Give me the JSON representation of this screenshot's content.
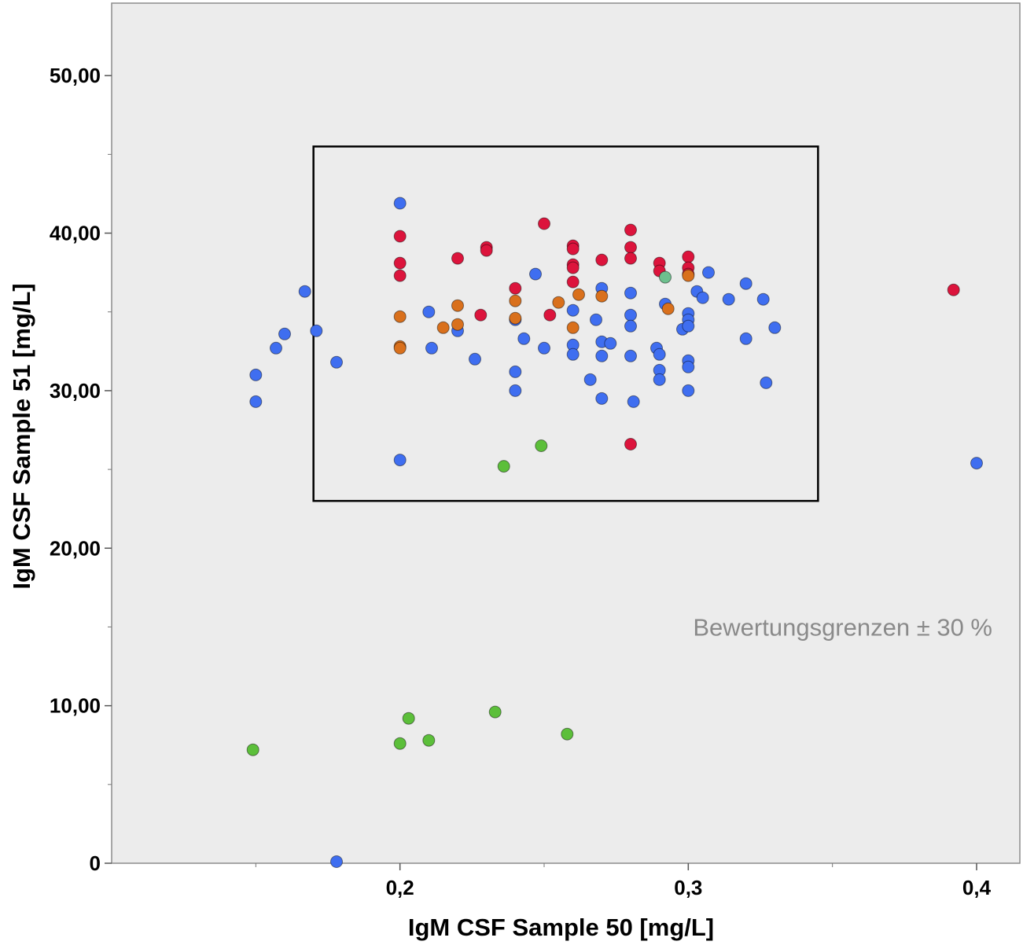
{
  "chart_data": {
    "type": "scatter",
    "xlabel": "IgM CSF Sample 50 [mg/L]",
    "ylabel": "IgM CSF Sample 51 [mg/L]",
    "xlim": [
      0.1,
      0.415
    ],
    "ylim": [
      0,
      54.6
    ],
    "x_ticks": [
      0.2,
      0.3,
      0.4
    ],
    "x_tick_labels": [
      "0,2",
      "0,3",
      "0,4"
    ],
    "x_minor_ticks": [
      0.15,
      0.25,
      0.35
    ],
    "y_ticks": [
      0,
      10,
      20,
      30,
      40,
      50
    ],
    "y_tick_labels": [
      "0",
      "10,00",
      "20,00",
      "30,00",
      "40,00",
      "50,00"
    ],
    "y_minor_ticks": [
      5,
      15,
      25,
      35,
      45
    ],
    "grid": false,
    "background": "#ececec",
    "acceptance_box": {
      "x": [
        0.17,
        0.345
      ],
      "y": [
        23.0,
        45.5
      ]
    },
    "annotation": "Bewertungsgrenzen ± 30 %",
    "series": [
      {
        "color": "#3f6ef0",
        "points": [
          [
            0.15,
            31.0
          ],
          [
            0.15,
            29.3
          ],
          [
            0.157,
            32.7
          ],
          [
            0.16,
            33.6
          ],
          [
            0.167,
            36.3
          ],
          [
            0.171,
            33.8
          ],
          [
            0.178,
            31.8
          ],
          [
            0.178,
            0.1
          ],
          [
            0.2,
            41.9
          ],
          [
            0.2,
            25.6
          ],
          [
            0.21,
            35.0
          ],
          [
            0.211,
            32.7
          ],
          [
            0.22,
            33.8
          ],
          [
            0.226,
            32.0
          ],
          [
            0.24,
            34.5
          ],
          [
            0.24,
            31.2
          ],
          [
            0.24,
            30.0
          ],
          [
            0.243,
            33.3
          ],
          [
            0.247,
            37.4
          ],
          [
            0.25,
            32.7
          ],
          [
            0.26,
            35.1
          ],
          [
            0.26,
            32.9
          ],
          [
            0.26,
            32.3
          ],
          [
            0.266,
            30.7
          ],
          [
            0.268,
            34.5
          ],
          [
            0.27,
            36.5
          ],
          [
            0.27,
            33.1
          ],
          [
            0.27,
            32.2
          ],
          [
            0.27,
            29.5
          ],
          [
            0.273,
            33.0
          ],
          [
            0.28,
            36.2
          ],
          [
            0.28,
            34.8
          ],
          [
            0.28,
            34.1
          ],
          [
            0.28,
            32.2
          ],
          [
            0.281,
            29.3
          ],
          [
            0.289,
            32.7
          ],
          [
            0.29,
            32.3
          ],
          [
            0.29,
            31.3
          ],
          [
            0.29,
            30.7
          ],
          [
            0.292,
            35.5
          ],
          [
            0.298,
            33.9
          ],
          [
            0.3,
            34.9
          ],
          [
            0.3,
            34.5
          ],
          [
            0.3,
            34.1
          ],
          [
            0.3,
            31.9
          ],
          [
            0.3,
            31.5
          ],
          [
            0.3,
            30.0
          ],
          [
            0.303,
            36.3
          ],
          [
            0.305,
            35.9
          ],
          [
            0.307,
            37.5
          ],
          [
            0.314,
            35.8
          ],
          [
            0.32,
            36.8
          ],
          [
            0.32,
            33.3
          ],
          [
            0.326,
            35.8
          ],
          [
            0.327,
            30.5
          ],
          [
            0.33,
            34.0
          ],
          [
            0.4,
            25.4
          ]
        ]
      },
      {
        "color": "#dc143c",
        "points": [
          [
            0.2,
            39.8
          ],
          [
            0.2,
            38.1
          ],
          [
            0.2,
            37.3
          ],
          [
            0.22,
            38.4
          ],
          [
            0.228,
            34.8
          ],
          [
            0.23,
            39.1
          ],
          [
            0.23,
            38.9
          ],
          [
            0.24,
            36.5
          ],
          [
            0.25,
            40.6
          ],
          [
            0.252,
            34.8
          ],
          [
            0.26,
            39.2
          ],
          [
            0.26,
            39.0
          ],
          [
            0.26,
            38.0
          ],
          [
            0.26,
            37.8
          ],
          [
            0.26,
            36.9
          ],
          [
            0.27,
            38.3
          ],
          [
            0.28,
            40.2
          ],
          [
            0.28,
            39.1
          ],
          [
            0.28,
            38.4
          ],
          [
            0.28,
            26.6
          ],
          [
            0.29,
            38.1
          ],
          [
            0.29,
            37.6
          ],
          [
            0.3,
            38.5
          ],
          [
            0.3,
            37.8
          ],
          [
            0.3,
            37.4
          ],
          [
            0.392,
            36.4
          ]
        ]
      },
      {
        "color": "#d9701c",
        "points": [
          [
            0.2,
            34.7
          ],
          [
            0.2,
            32.8
          ],
          [
            0.2,
            32.7
          ],
          [
            0.215,
            34.0
          ],
          [
            0.22,
            35.4
          ],
          [
            0.22,
            34.2
          ],
          [
            0.24,
            35.7
          ],
          [
            0.24,
            34.6
          ],
          [
            0.255,
            35.6
          ],
          [
            0.26,
            34.0
          ],
          [
            0.262,
            36.1
          ],
          [
            0.27,
            36.0
          ],
          [
            0.293,
            35.2
          ],
          [
            0.3,
            37.3
          ]
        ]
      },
      {
        "color": "#5cbf3a",
        "points": [
          [
            0.149,
            7.2
          ],
          [
            0.2,
            7.6
          ],
          [
            0.203,
            9.2
          ],
          [
            0.21,
            7.8
          ],
          [
            0.233,
            9.6
          ],
          [
            0.236,
            25.2
          ],
          [
            0.249,
            26.5
          ],
          [
            0.258,
            8.2
          ]
        ]
      },
      {
        "color": "#6dc08e",
        "points": [
          [
            0.292,
            37.2
          ]
        ]
      }
    ]
  }
}
